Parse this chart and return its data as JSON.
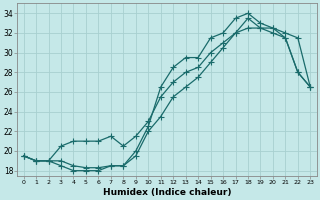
{
  "xlabel": "Humidex (Indice chaleur)",
  "background_color": "#c5e8e8",
  "grid_color": "#a8d0d0",
  "line_color": "#1a6b6b",
  "xlim": [
    -0.5,
    23.5
  ],
  "ylim": [
    17.5,
    35.0
  ],
  "xticks": [
    0,
    1,
    2,
    3,
    4,
    5,
    6,
    7,
    8,
    9,
    10,
    11,
    12,
    13,
    14,
    15,
    16,
    17,
    18,
    19,
    20,
    21,
    22,
    23
  ],
  "yticks": [
    18,
    20,
    22,
    24,
    26,
    28,
    30,
    32,
    34
  ],
  "curve1_x": [
    0,
    1,
    2,
    3,
    4,
    5,
    6,
    7,
    8,
    9,
    10,
    11,
    12,
    13,
    14,
    15,
    16,
    17,
    18,
    19,
    20,
    21,
    22,
    23
  ],
  "curve1_y": [
    19.5,
    19.0,
    19.0,
    19.0,
    18.5,
    18.3,
    18.3,
    18.5,
    18.5,
    20.0,
    22.5,
    26.5,
    28.5,
    29.5,
    29.5,
    31.5,
    32.0,
    33.5,
    34.0,
    33.0,
    32.5,
    31.5,
    28.0,
    26.5
  ],
  "curve2_x": [
    0,
    1,
    2,
    3,
    4,
    5,
    6,
    7,
    8,
    9,
    10,
    11,
    12,
    13,
    14,
    15,
    16,
    17,
    18,
    19,
    20,
    21,
    22,
    23
  ],
  "curve2_y": [
    19.5,
    19.0,
    19.0,
    20.5,
    21.0,
    21.0,
    21.0,
    21.5,
    20.5,
    21.5,
    23.0,
    25.5,
    27.0,
    28.0,
    28.5,
    30.0,
    31.0,
    32.0,
    32.5,
    32.5,
    32.5,
    32.0,
    31.5,
    26.5
  ],
  "curve3_x": [
    0,
    1,
    2,
    3,
    4,
    5,
    6,
    7,
    8,
    9,
    10,
    11,
    12,
    13,
    14,
    15,
    16,
    17,
    18,
    19,
    20,
    21,
    22,
    23
  ],
  "curve3_y": [
    19.5,
    19.0,
    19.0,
    18.5,
    18.0,
    18.0,
    18.0,
    18.5,
    18.5,
    19.5,
    22.0,
    23.5,
    25.5,
    26.5,
    27.5,
    29.0,
    30.5,
    32.0,
    33.5,
    32.5,
    32.0,
    31.5,
    28.0,
    26.5
  ]
}
